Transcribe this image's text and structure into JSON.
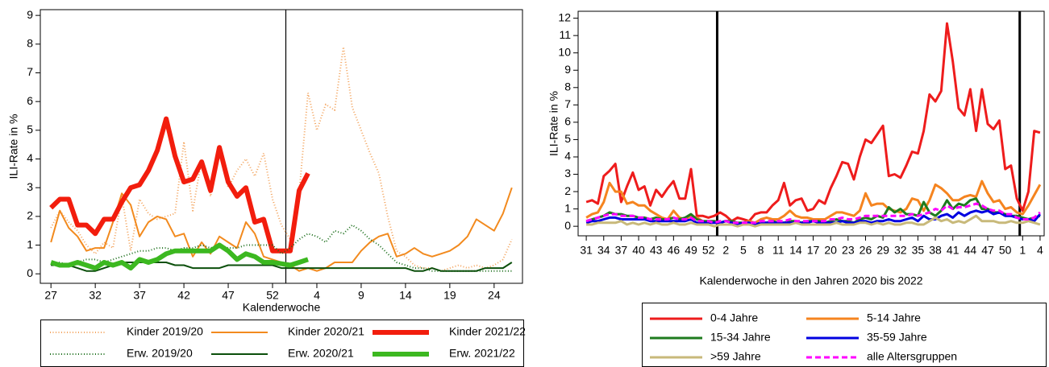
{
  "chart_data": [
    {
      "type": "line",
      "y_label": "ILI-Rate in %",
      "x_label": "Kalenderwoche",
      "categories": [
        "27",
        null,
        null,
        null,
        null,
        "32",
        null,
        null,
        null,
        null,
        "37",
        null,
        null,
        null,
        null,
        "42",
        null,
        null,
        null,
        null,
        "47",
        null,
        null,
        null,
        null,
        "52",
        null,
        null,
        null,
        null,
        "4",
        null,
        null,
        null,
        null,
        "9",
        null,
        null,
        null,
        null,
        "14",
        null,
        null,
        null,
        null,
        "19",
        null,
        null,
        null,
        null,
        "24",
        null,
        null
      ],
      "ylim": [
        -0.33,
        9.2
      ],
      "yticks": [
        0,
        1,
        2,
        3,
        4,
        5,
        6,
        7,
        8,
        9
      ],
      "series": [
        {
          "name": "Kinder 2019/20",
          "color": "#f3a35c",
          "style": "dotted",
          "weight": "normal",
          "values": [
            1.6,
            2.2,
            1.8,
            1.5,
            1.0,
            0.7,
            1.1,
            0.9,
            2.7,
            0.8,
            2.6,
            2.1,
            1.9,
            2.0,
            2.1,
            4.6,
            2.2,
            4.0,
            2.7,
            4.4,
            3.0,
            3.6,
            4.0,
            3.4,
            4.2,
            2.6,
            1.7,
            1.2,
            2.8,
            6.3,
            5.0,
            5.9,
            5.7,
            7.9,
            5.8,
            5.0,
            4.2,
            3.5,
            2.0,
            0.8,
            0.6,
            0.3,
            0.2,
            0.2,
            0.1,
            0.2,
            0.3,
            0.2,
            0.3,
            0.2,
            0.3,
            0.5,
            1.2
          ]
        },
        {
          "name": "Kinder 2020/21",
          "color": "#f28a1e",
          "style": "solid",
          "weight": "normal",
          "values": [
            1.1,
            2.2,
            1.6,
            1.3,
            0.8,
            0.9,
            0.9,
            1.8,
            2.8,
            2.4,
            1.3,
            1.8,
            2.0,
            1.9,
            1.3,
            1.4,
            0.6,
            1.1,
            0.7,
            1.3,
            1.1,
            0.9,
            1.8,
            1.4,
            0.6,
            0.5,
            0.4,
            0.3,
            0.1,
            0.2,
            0.1,
            0.2,
            0.4,
            0.4,
            0.4,
            0.8,
            1.1,
            1.3,
            1.4,
            0.6,
            0.7,
            0.9,
            0.7,
            0.6,
            0.7,
            0.8,
            1.0,
            1.3,
            1.9,
            1.7,
            1.5,
            2.1,
            3.0
          ]
        },
        {
          "name": "Kinder 2021/22",
          "color": "#f21d0d",
          "style": "solid",
          "weight": "thick",
          "values": [
            2.3,
            2.6,
            2.6,
            1.7,
            1.7,
            1.4,
            1.9,
            1.9,
            2.5,
            3.0,
            3.1,
            3.6,
            4.3,
            5.4,
            4.1,
            3.2,
            3.3,
            3.9,
            2.9,
            4.4,
            3.2,
            2.7,
            3.0,
            1.8,
            1.9,
            0.8,
            0.8,
            0.8,
            2.9,
            3.5,
            null,
            null,
            null,
            null,
            null,
            null,
            null,
            null,
            null,
            null,
            null,
            null,
            null,
            null,
            null,
            null,
            null,
            null,
            null,
            null,
            null,
            null,
            null
          ]
        },
        {
          "name": "Erw. 2019/20",
          "color": "#1b6e1b",
          "style": "dotted",
          "weight": "normal",
          "values": [
            0.3,
            0.4,
            0.3,
            0.4,
            0.5,
            0.5,
            0.4,
            0.5,
            0.6,
            0.7,
            0.8,
            0.8,
            0.9,
            0.9,
            0.8,
            0.9,
            0.9,
            1.0,
            0.9,
            1.0,
            0.9,
            0.9,
            1.0,
            1.0,
            1.0,
            1.0,
            0.7,
            0.9,
            1.2,
            1.4,
            1.3,
            1.1,
            1.5,
            1.4,
            1.7,
            1.5,
            1.2,
            1.0,
            0.7,
            0.4,
            0.3,
            0.2,
            0.2,
            0.1,
            0.1,
            0.1,
            0.1,
            0.1,
            0.1,
            0.1,
            0.1,
            0.1,
            0.1
          ]
        },
        {
          "name": "Erw. 2020/21",
          "color": "#0b4f0b",
          "style": "solid",
          "weight": "normal",
          "values": [
            0.3,
            0.3,
            0.3,
            0.2,
            0.1,
            0.1,
            0.2,
            0.3,
            0.4,
            0.4,
            0.4,
            0.4,
            0.4,
            0.4,
            0.3,
            0.3,
            0.2,
            0.2,
            0.2,
            0.2,
            0.3,
            0.3,
            0.3,
            0.3,
            0.3,
            0.3,
            0.2,
            0.2,
            0.2,
            0.2,
            0.2,
            0.2,
            0.2,
            0.2,
            0.2,
            0.2,
            0.2,
            0.2,
            0.2,
            0.2,
            0.2,
            0.1,
            0.1,
            0.2,
            0.1,
            0.1,
            0.1,
            0.1,
            0.1,
            0.2,
            0.2,
            0.2,
            0.4
          ]
        },
        {
          "name": "Erw. 2021/22",
          "color": "#3cb820",
          "style": "solid",
          "weight": "thick",
          "values": [
            0.4,
            0.3,
            0.3,
            0.4,
            0.3,
            0.2,
            0.4,
            0.3,
            0.4,
            0.2,
            0.5,
            0.4,
            0.5,
            0.7,
            0.8,
            0.8,
            0.8,
            0.8,
            0.8,
            1.0,
            0.8,
            0.5,
            0.7,
            0.6,
            0.4,
            0.4,
            0.35,
            0.3,
            0.4,
            0.5,
            null,
            null,
            null,
            null,
            null,
            null,
            null,
            null,
            null,
            null,
            null,
            null,
            null,
            null,
            null,
            null,
            null,
            null,
            null,
            null,
            null,
            null,
            null
          ]
        }
      ]
    },
    {
      "type": "line",
      "y_label": "ILI-Rate in %",
      "x_label": "Kalenderwoche in den Jahren 2020 bis 2022",
      "categories": [
        "31",
        null,
        null,
        "34",
        null,
        null,
        "37",
        null,
        null,
        "40",
        null,
        null,
        "43",
        null,
        null,
        "46",
        null,
        null,
        "49",
        null,
        null,
        "52",
        null,
        null,
        "2",
        null,
        null,
        "5",
        null,
        null,
        "8",
        null,
        null,
        "11",
        null,
        null,
        "14",
        null,
        null,
        "17",
        null,
        null,
        "20",
        null,
        null,
        "23",
        null,
        null,
        "26",
        null,
        null,
        "29",
        null,
        null,
        "32",
        null,
        null,
        "35",
        null,
        null,
        "38",
        null,
        null,
        "41",
        null,
        null,
        "44",
        null,
        null,
        "47",
        null,
        null,
        "50",
        null,
        null,
        "1",
        null,
        null,
        "4"
      ],
      "ylim": [
        -0.55,
        12.4
      ],
      "yticks": [
        0,
        1,
        2,
        3,
        4,
        5,
        6,
        7,
        8,
        9,
        10,
        11,
        12
      ],
      "series": [
        {
          "name": "0-4 Jahre",
          "color": "#ee1c1c",
          "style": "solid",
          "weight": "medium",
          "values": [
            1.4,
            1.5,
            1.3,
            2.9,
            3.2,
            3.6,
            1.4,
            2.3,
            3.1,
            2.1,
            2.3,
            1.2,
            2.1,
            1.7,
            2.2,
            2.6,
            1.6,
            1.6,
            3.3,
            0.6,
            0.6,
            0.5,
            0.6,
            0.8,
            0.6,
            0.3,
            0.5,
            0.4,
            0.3,
            0.7,
            0.8,
            0.8,
            1.2,
            1.5,
            2.5,
            1.2,
            1.5,
            1.6,
            0.9,
            1.0,
            1.5,
            1.3,
            2.2,
            2.9,
            3.7,
            3.6,
            2.7,
            4.0,
            5.0,
            4.8,
            5.3,
            5.8,
            2.9,
            3.0,
            2.8,
            3.5,
            4.3,
            4.2,
            5.5,
            7.6,
            7.2,
            7.8,
            11.7,
            9.5,
            6.8,
            6.4,
            7.9,
            5.5,
            7.9,
            5.9,
            5.6,
            6.1,
            3.3,
            3.5,
            1.6,
            0.9,
            2.0,
            5.5,
            5.4
          ]
        },
        {
          "name": "5-14 Jahre",
          "color": "#f5841f",
          "style": "solid",
          "weight": "medium",
          "values": [
            0.5,
            0.7,
            0.8,
            1.4,
            2.5,
            2.0,
            2.0,
            1.3,
            1.4,
            1.2,
            1.2,
            0.9,
            0.7,
            0.5,
            0.4,
            0.9,
            0.5,
            0.4,
            0.6,
            0.5,
            0.3,
            0.2,
            0.2,
            0.2,
            0.3,
            0.3,
            0.1,
            0.2,
            0.3,
            0.2,
            0.4,
            0.5,
            0.4,
            0.4,
            0.6,
            0.9,
            0.6,
            0.5,
            0.5,
            0.4,
            0.4,
            0.4,
            0.6,
            0.8,
            0.8,
            0.7,
            0.6,
            0.9,
            1.9,
            1.2,
            1.3,
            1.3,
            1.0,
            0.9,
            0.8,
            1.0,
            1.6,
            1.5,
            0.9,
            1.5,
            2.4,
            2.2,
            1.9,
            1.5,
            1.5,
            1.7,
            1.8,
            1.7,
            2.6,
            1.9,
            1.4,
            1.5,
            1.0,
            1.1,
            0.8,
            0.7,
            1.2,
            1.8,
            2.4
          ]
        },
        {
          "name": "15-34 Jahre",
          "color": "#1e7b1e",
          "style": "solid",
          "weight": "medium",
          "values": [
            0.3,
            0.4,
            0.5,
            0.6,
            0.8,
            0.7,
            0.7,
            0.6,
            0.6,
            0.5,
            0.5,
            0.4,
            0.5,
            0.4,
            0.4,
            0.5,
            0.4,
            0.5,
            0.7,
            0.4,
            0.3,
            0.3,
            0.3,
            0.2,
            0.3,
            0.3,
            0.2,
            0.2,
            0.2,
            0.1,
            0.2,
            0.2,
            0.3,
            0.2,
            0.2,
            0.3,
            0.3,
            0.2,
            0.3,
            0.3,
            0.3,
            0.2,
            0.3,
            0.4,
            0.3,
            0.3,
            0.2,
            0.4,
            0.5,
            0.4,
            0.6,
            0.5,
            1.1,
            0.8,
            1.0,
            0.7,
            0.7,
            0.6,
            1.4,
            0.8,
            0.6,
            0.9,
            1.5,
            1.0,
            1.3,
            1.2,
            1.5,
            1.6,
            1.0,
            1.0,
            0.8,
            0.8,
            0.7,
            0.6,
            0.6,
            0.5,
            0.4,
            0.5,
            0.6
          ]
        },
        {
          "name": "35-59 Jahre",
          "color": "#0000e0",
          "style": "solid",
          "weight": "medium",
          "values": [
            0.2,
            0.3,
            0.3,
            0.4,
            0.5,
            0.5,
            0.4,
            0.4,
            0.4,
            0.4,
            0.4,
            0.3,
            0.3,
            0.3,
            0.3,
            0.3,
            0.3,
            0.3,
            0.4,
            0.2,
            0.2,
            0.2,
            0.2,
            0.2,
            0.3,
            0.2,
            0.1,
            0.2,
            0.2,
            0.1,
            0.2,
            0.2,
            0.2,
            0.2,
            0.2,
            0.2,
            0.2,
            0.2,
            0.2,
            0.3,
            0.2,
            0.2,
            0.2,
            0.2,
            0.3,
            0.2,
            0.2,
            0.3,
            0.3,
            0.2,
            0.3,
            0.3,
            0.4,
            0.3,
            0.3,
            0.4,
            0.5,
            0.3,
            0.6,
            0.4,
            0.4,
            0.6,
            0.7,
            0.5,
            0.8,
            0.6,
            0.8,
            0.9,
            0.8,
            0.9,
            0.7,
            0.8,
            0.6,
            0.6,
            0.5,
            0.4,
            0.4,
            0.3,
            0.7
          ]
        },
        {
          "name": ">59 Jahre",
          "color": "#c8b97a",
          "style": "solid",
          "weight": "medium",
          "values": [
            0.1,
            0.1,
            0.2,
            0.2,
            0.2,
            0.2,
            0.3,
            0.1,
            0.2,
            0.1,
            0.2,
            0.1,
            0.2,
            0.1,
            0.1,
            0.2,
            0.1,
            0.1,
            0.2,
            0.1,
            0.1,
            0.1,
            0.0,
            0.1,
            0.1,
            0.1,
            0.0,
            0.1,
            0.1,
            0.0,
            0.1,
            0.1,
            0.1,
            0.1,
            0.1,
            0.1,
            0.2,
            0.1,
            0.1,
            0.1,
            0.1,
            0.1,
            0.1,
            0.2,
            0.1,
            0.1,
            0.1,
            0.2,
            0.2,
            0.1,
            0.2,
            0.1,
            0.2,
            0.1,
            0.1,
            0.2,
            0.2,
            0.1,
            0.1,
            0.3,
            0.5,
            0.3,
            0.4,
            0.2,
            0.3,
            0.2,
            0.4,
            0.6,
            0.3,
            0.3,
            0.3,
            0.2,
            0.2,
            0.3,
            0.2,
            0.2,
            0.3,
            0.2,
            0.1
          ]
        },
        {
          "name": "alle Altersgruppen",
          "color": "#ff00ff",
          "style": "dashed",
          "weight": "medium",
          "values": [
            0.3,
            0.4,
            0.5,
            0.6,
            0.7,
            0.7,
            0.6,
            0.6,
            0.6,
            0.5,
            0.5,
            0.4,
            0.4,
            0.4,
            0.4,
            0.5,
            0.4,
            0.4,
            0.5,
            0.3,
            0.3,
            0.3,
            0.2,
            0.3,
            0.3,
            0.2,
            0.2,
            0.2,
            0.2,
            0.2,
            0.3,
            0.3,
            0.3,
            0.3,
            0.3,
            0.4,
            0.3,
            0.3,
            0.3,
            0.3,
            0.3,
            0.3,
            0.4,
            0.4,
            0.5,
            0.4,
            0.4,
            0.5,
            0.6,
            0.6,
            0.6,
            0.6,
            0.6,
            0.6,
            0.6,
            0.6,
            0.7,
            0.6,
            0.7,
            0.8,
            1.0,
            0.9,
            1.2,
            1.0,
            1.1,
            1.1,
            1.2,
            1.3,
            1.2,
            1.0,
            0.9,
            0.9,
            0.7,
            0.7,
            0.5,
            0.4,
            0.4,
            0.5,
            0.8
          ]
        }
      ]
    }
  ]
}
